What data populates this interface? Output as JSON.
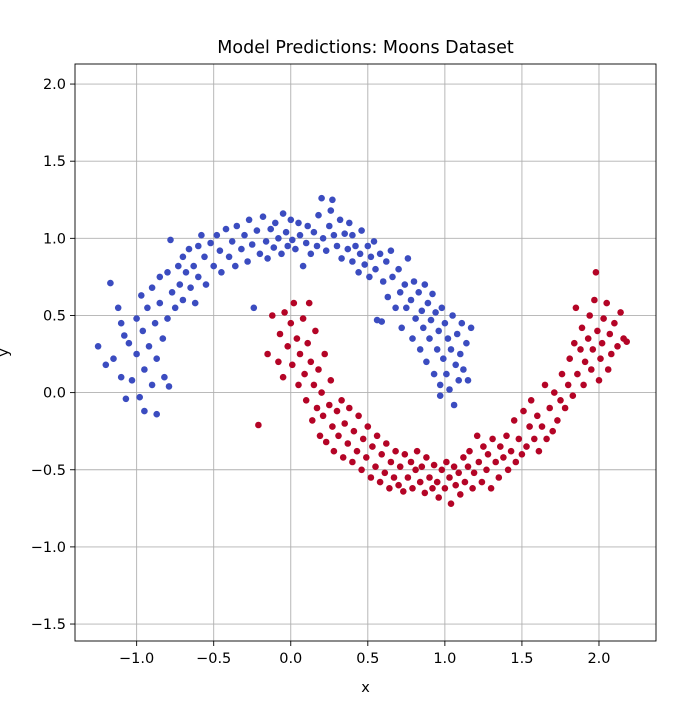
{
  "chart_data": {
    "type": "scatter",
    "title": "Model Predictions: Moons Dataset",
    "xlabel": "x",
    "ylabel": "y",
    "xlim": [
      -1.4,
      2.37
    ],
    "ylim": [
      -1.61,
      2.13
    ],
    "xticks": [
      -1.0,
      -0.5,
      0.0,
      0.5,
      1.0,
      1.5,
      2.0
    ],
    "yticks": [
      -1.5,
      -1.0,
      -0.5,
      0.0,
      0.5,
      1.0,
      1.5,
      2.0
    ],
    "xtick_labels": [
      "−1.0",
      "−0.5",
      "0.0",
      "0.5",
      "1.0",
      "1.5",
      "2.0"
    ],
    "ytick_labels": [
      "−1.5",
      "−1.0",
      "−0.5",
      "0.0",
      "0.5",
      "1.0",
      "1.5",
      "2.0"
    ],
    "grid": true,
    "classes": [
      {
        "label": "0",
        "color": "#3b4cc0"
      },
      {
        "label": "1",
        "color": "#b40426"
      }
    ],
    "points": [
      [
        -1.25,
        0.3,
        0
      ],
      [
        -1.2,
        0.18,
        0
      ],
      [
        -1.15,
        0.22,
        0
      ],
      [
        -1.17,
        0.71,
        0
      ],
      [
        -1.12,
        0.55,
        0
      ],
      [
        -1.1,
        0.45,
        0
      ],
      [
        -1.08,
        0.37,
        0
      ],
      [
        -1.1,
        0.1,
        0
      ],
      [
        -1.07,
        -0.04,
        0
      ],
      [
        -1.05,
        0.32,
        0
      ],
      [
        -1.03,
        0.08,
        0
      ],
      [
        -1.0,
        0.48,
        0
      ],
      [
        -1.0,
        0.25,
        0
      ],
      [
        -0.98,
        -0.03,
        0
      ],
      [
        -0.97,
        0.63,
        0
      ],
      [
        -0.96,
        0.4,
        0
      ],
      [
        -0.95,
        0.15,
        0
      ],
      [
        -0.95,
        -0.12,
        0
      ],
      [
        -0.93,
        0.55,
        0
      ],
      [
        -0.92,
        0.3,
        0
      ],
      [
        -0.9,
        0.05,
        0
      ],
      [
        -0.9,
        0.68,
        0
      ],
      [
        -0.88,
        0.45,
        0
      ],
      [
        -0.87,
        0.22,
        0
      ],
      [
        -0.87,
        -0.14,
        0
      ],
      [
        -0.85,
        0.75,
        0
      ],
      [
        -0.85,
        0.58,
        0
      ],
      [
        -0.83,
        0.35,
        0
      ],
      [
        -0.82,
        0.1,
        0
      ],
      [
        -0.8,
        0.48,
        0
      ],
      [
        -0.8,
        0.78,
        0
      ],
      [
        -0.79,
        0.04,
        0
      ],
      [
        -0.78,
        0.99,
        0
      ],
      [
        -0.77,
        0.65,
        0
      ],
      [
        -0.75,
        0.55,
        0
      ],
      [
        -0.73,
        0.82,
        0
      ],
      [
        -0.72,
        0.7,
        0
      ],
      [
        -0.7,
        0.6,
        0
      ],
      [
        -0.7,
        0.88,
        0
      ],
      [
        -0.68,
        0.78,
        0
      ],
      [
        -0.66,
        0.93,
        0
      ],
      [
        -0.65,
        0.68,
        0
      ],
      [
        -0.63,
        0.82,
        0
      ],
      [
        -0.62,
        0.58,
        0
      ],
      [
        -0.6,
        0.95,
        0
      ],
      [
        -0.6,
        0.75,
        0
      ],
      [
        -0.58,
        1.02,
        0
      ],
      [
        -0.56,
        0.88,
        0
      ],
      [
        -0.55,
        0.7,
        0
      ],
      [
        -0.52,
        0.97,
        0
      ],
      [
        -0.5,
        0.82,
        0
      ],
      [
        -0.48,
        1.02,
        0
      ],
      [
        -0.46,
        0.92,
        0
      ],
      [
        -0.45,
        0.78,
        0
      ],
      [
        -0.42,
        1.06,
        0
      ],
      [
        -0.4,
        0.88,
        0
      ],
      [
        -0.38,
        0.98,
        0
      ],
      [
        -0.36,
        0.82,
        0
      ],
      [
        -0.35,
        1.08,
        0
      ],
      [
        -0.32,
        0.93,
        0
      ],
      [
        -0.3,
        1.02,
        0
      ],
      [
        -0.28,
        0.85,
        0
      ],
      [
        -0.27,
        1.12,
        0
      ],
      [
        -0.25,
        0.96,
        0
      ],
      [
        -0.24,
        0.55,
        0
      ],
      [
        -0.22,
        1.05,
        0
      ],
      [
        -0.2,
        0.9,
        0
      ],
      [
        -0.18,
        1.14,
        0
      ],
      [
        -0.16,
        0.98,
        0
      ],
      [
        -0.15,
        0.87,
        0
      ],
      [
        -0.13,
        1.06,
        0
      ],
      [
        -0.11,
        0.94,
        0
      ],
      [
        -0.1,
        1.1,
        0
      ],
      [
        -0.08,
        1.0,
        0
      ],
      [
        -0.06,
        0.9,
        0
      ],
      [
        -0.05,
        1.16,
        0
      ],
      [
        -0.03,
        1.04,
        0
      ],
      [
        -0.02,
        0.95,
        0
      ],
      [
        0.0,
        1.12,
        0
      ],
      [
        0.01,
        0.99,
        0
      ],
      [
        0.03,
        0.93,
        0
      ],
      [
        0.05,
        1.1,
        0
      ],
      [
        0.06,
        1.02,
        0
      ],
      [
        0.08,
        0.82,
        0
      ],
      [
        0.1,
        0.97,
        0
      ],
      [
        0.11,
        1.08,
        0
      ],
      [
        0.13,
        0.9,
        0
      ],
      [
        0.15,
        1.04,
        0
      ],
      [
        0.17,
        0.95,
        0
      ],
      [
        0.18,
        1.15,
        0
      ],
      [
        0.2,
        1.26,
        0
      ],
      [
        0.21,
        1.0,
        0
      ],
      [
        0.23,
        0.92,
        0
      ],
      [
        0.25,
        1.08,
        0
      ],
      [
        0.26,
        1.18,
        0
      ],
      [
        0.27,
        1.25,
        0
      ],
      [
        0.28,
        1.02,
        0
      ],
      [
        0.3,
        0.95,
        0
      ],
      [
        0.32,
        1.12,
        0
      ],
      [
        0.33,
        0.87,
        0
      ],
      [
        0.35,
        1.03,
        0
      ],
      [
        0.37,
        0.93,
        0
      ],
      [
        0.38,
        1.1,
        0
      ],
      [
        0.4,
        0.85,
        0
      ],
      [
        0.4,
        1.02,
        0
      ],
      [
        0.42,
        0.95,
        0
      ],
      [
        0.44,
        0.78,
        0
      ],
      [
        0.45,
        0.9,
        0
      ],
      [
        0.46,
        1.05,
        0
      ],
      [
        0.48,
        0.83,
        0
      ],
      [
        0.5,
        0.95,
        0
      ],
      [
        0.51,
        0.75,
        0
      ],
      [
        0.52,
        0.88,
        0
      ],
      [
        0.54,
        0.98,
        0
      ],
      [
        0.55,
        0.8,
        0
      ],
      [
        0.56,
        0.47,
        0
      ],
      [
        0.58,
        0.9,
        0
      ],
      [
        0.59,
        0.46,
        0
      ],
      [
        0.6,
        0.72,
        0
      ],
      [
        0.62,
        0.85,
        0
      ],
      [
        0.63,
        0.62,
        0
      ],
      [
        0.65,
        0.92,
        0
      ],
      [
        0.66,
        0.75,
        0
      ],
      [
        0.68,
        0.55,
        0
      ],
      [
        0.7,
        0.8,
        0
      ],
      [
        0.71,
        0.65,
        0
      ],
      [
        0.72,
        0.42,
        0
      ],
      [
        0.74,
        0.7,
        0
      ],
      [
        0.75,
        0.55,
        0
      ],
      [
        0.76,
        0.87,
        0
      ],
      [
        0.78,
        0.6,
        0
      ],
      [
        0.79,
        0.35,
        0
      ],
      [
        0.8,
        0.72,
        0
      ],
      [
        0.81,
        0.48,
        0
      ],
      [
        0.83,
        0.65,
        0
      ],
      [
        0.84,
        0.28,
        0
      ],
      [
        0.85,
        0.53,
        0
      ],
      [
        0.86,
        0.42,
        0
      ],
      [
        0.87,
        0.7,
        0
      ],
      [
        0.88,
        0.2,
        0
      ],
      [
        0.89,
        0.58,
        0
      ],
      [
        0.9,
        0.35,
        0
      ],
      [
        0.91,
        0.47,
        0
      ],
      [
        0.92,
        0.64,
        0
      ],
      [
        0.93,
        0.12,
        0
      ],
      [
        0.94,
        0.52,
        0
      ],
      [
        0.95,
        0.28,
        0
      ],
      [
        0.96,
        0.4,
        0
      ],
      [
        0.97,
        0.05,
        0
      ],
      [
        0.97,
        -0.02,
        0
      ],
      [
        0.98,
        0.55,
        0
      ],
      [
        0.99,
        0.22,
        0
      ],
      [
        1.0,
        0.45,
        0
      ],
      [
        1.01,
        0.12,
        0
      ],
      [
        1.02,
        0.35,
        0
      ],
      [
        1.03,
        0.02,
        0
      ],
      [
        1.04,
        0.28,
        0
      ],
      [
        1.05,
        0.5,
        0
      ],
      [
        1.06,
        -0.08,
        0
      ],
      [
        1.07,
        0.18,
        0
      ],
      [
        1.08,
        0.38,
        0
      ],
      [
        1.09,
        0.08,
        0
      ],
      [
        1.1,
        0.25,
        0
      ],
      [
        1.11,
        0.45,
        0
      ],
      [
        1.12,
        0.15,
        0
      ],
      [
        1.14,
        0.32,
        0
      ],
      [
        1.15,
        0.08,
        0
      ],
      [
        1.17,
        0.42,
        0
      ],
      [
        -0.21,
        -0.21,
        1
      ],
      [
        -0.15,
        0.25,
        1
      ],
      [
        -0.12,
        0.5,
        1
      ],
      [
        -0.08,
        0.2,
        1
      ],
      [
        -0.07,
        0.38,
        1
      ],
      [
        -0.05,
        0.1,
        1
      ],
      [
        -0.04,
        0.52,
        1
      ],
      [
        -0.02,
        0.3,
        1
      ],
      [
        0.0,
        0.45,
        1
      ],
      [
        0.01,
        0.18,
        1
      ],
      [
        0.02,
        0.58,
        1
      ],
      [
        0.04,
        0.35,
        1
      ],
      [
        0.05,
        0.05,
        1
      ],
      [
        0.06,
        0.25,
        1
      ],
      [
        0.08,
        0.48,
        1
      ],
      [
        0.09,
        0.12,
        1
      ],
      [
        0.1,
        -0.05,
        1
      ],
      [
        0.11,
        0.32,
        1
      ],
      [
        0.12,
        0.58,
        1
      ],
      [
        0.13,
        0.2,
        1
      ],
      [
        0.14,
        -0.18,
        1
      ],
      [
        0.15,
        0.05,
        1
      ],
      [
        0.16,
        0.4,
        1
      ],
      [
        0.17,
        -0.1,
        1
      ],
      [
        0.18,
        0.15,
        1
      ],
      [
        0.19,
        -0.28,
        1
      ],
      [
        0.2,
        0.0,
        1
      ],
      [
        0.21,
        -0.15,
        1
      ],
      [
        0.22,
        0.25,
        1
      ],
      [
        0.23,
        -0.32,
        1
      ],
      [
        0.25,
        -0.08,
        1
      ],
      [
        0.26,
        0.08,
        1
      ],
      [
        0.27,
        -0.22,
        1
      ],
      [
        0.28,
        -0.38,
        1
      ],
      [
        0.3,
        -0.12,
        1
      ],
      [
        0.31,
        -0.28,
        1
      ],
      [
        0.33,
        -0.05,
        1
      ],
      [
        0.34,
        -0.42,
        1
      ],
      [
        0.35,
        -0.2,
        1
      ],
      [
        0.37,
        -0.33,
        1
      ],
      [
        0.38,
        -0.1,
        1
      ],
      [
        0.4,
        -0.45,
        1
      ],
      [
        0.41,
        -0.25,
        1
      ],
      [
        0.43,
        -0.38,
        1
      ],
      [
        0.44,
        -0.15,
        1
      ],
      [
        0.46,
        -0.5,
        1
      ],
      [
        0.47,
        -0.3,
        1
      ],
      [
        0.49,
        -0.42,
        1
      ],
      [
        0.5,
        -0.22,
        1
      ],
      [
        0.52,
        -0.55,
        1
      ],
      [
        0.53,
        -0.35,
        1
      ],
      [
        0.55,
        -0.48,
        1
      ],
      [
        0.56,
        -0.28,
        1
      ],
      [
        0.58,
        -0.58,
        1
      ],
      [
        0.59,
        -0.4,
        1
      ],
      [
        0.61,
        -0.52,
        1
      ],
      [
        0.62,
        -0.33,
        1
      ],
      [
        0.64,
        -0.62,
        1
      ],
      [
        0.65,
        -0.45,
        1
      ],
      [
        0.67,
        -0.55,
        1
      ],
      [
        0.68,
        -0.38,
        1
      ],
      [
        0.7,
        -0.6,
        1
      ],
      [
        0.71,
        -0.48,
        1
      ],
      [
        0.73,
        -0.64,
        1
      ],
      [
        0.74,
        -0.4,
        1
      ],
      [
        0.76,
        -0.55,
        1
      ],
      [
        0.78,
        -0.45,
        1
      ],
      [
        0.79,
        -0.62,
        1
      ],
      [
        0.81,
        -0.5,
        1
      ],
      [
        0.82,
        -0.38,
        1
      ],
      [
        0.84,
        -0.58,
        1
      ],
      [
        0.85,
        -0.48,
        1
      ],
      [
        0.87,
        -0.65,
        1
      ],
      [
        0.88,
        -0.42,
        1
      ],
      [
        0.9,
        -0.55,
        1
      ],
      [
        0.92,
        -0.62,
        1
      ],
      [
        0.93,
        -0.47,
        1
      ],
      [
        0.95,
        -0.58,
        1
      ],
      [
        0.96,
        -0.68,
        1
      ],
      [
        0.98,
        -0.5,
        1
      ],
      [
        1.0,
        -0.62,
        1
      ],
      [
        1.01,
        -0.45,
        1
      ],
      [
        1.03,
        -0.55,
        1
      ],
      [
        1.04,
        -0.72,
        1
      ],
      [
        1.06,
        -0.48,
        1
      ],
      [
        1.07,
        -0.6,
        1
      ],
      [
        1.09,
        -0.52,
        1
      ],
      [
        1.1,
        -0.66,
        1
      ],
      [
        1.12,
        -0.42,
        1
      ],
      [
        1.13,
        -0.58,
        1
      ],
      [
        1.15,
        -0.48,
        1
      ],
      [
        1.16,
        -0.38,
        1
      ],
      [
        1.18,
        -0.62,
        1
      ],
      [
        1.19,
        -0.52,
        1
      ],
      [
        1.21,
        -0.28,
        1
      ],
      [
        1.22,
        -0.45,
        1
      ],
      [
        1.24,
        -0.58,
        1
      ],
      [
        1.25,
        -0.35,
        1
      ],
      [
        1.27,
        -0.5,
        1
      ],
      [
        1.28,
        -0.4,
        1
      ],
      [
        1.3,
        -0.62,
        1
      ],
      [
        1.31,
        -0.3,
        1
      ],
      [
        1.33,
        -0.45,
        1
      ],
      [
        1.35,
        -0.55,
        1
      ],
      [
        1.36,
        -0.35,
        1
      ],
      [
        1.38,
        -0.42,
        1
      ],
      [
        1.4,
        -0.28,
        1
      ],
      [
        1.41,
        -0.5,
        1
      ],
      [
        1.43,
        -0.38,
        1
      ],
      [
        1.45,
        -0.18,
        1
      ],
      [
        1.46,
        -0.45,
        1
      ],
      [
        1.48,
        -0.3,
        1
      ],
      [
        1.5,
        -0.4,
        1
      ],
      [
        1.51,
        -0.12,
        1
      ],
      [
        1.53,
        -0.35,
        1
      ],
      [
        1.55,
        -0.22,
        1
      ],
      [
        1.56,
        -0.05,
        1
      ],
      [
        1.58,
        -0.3,
        1
      ],
      [
        1.6,
        -0.15,
        1
      ],
      [
        1.61,
        -0.38,
        1
      ],
      [
        1.63,
        -0.22,
        1
      ],
      [
        1.65,
        0.05,
        1
      ],
      [
        1.66,
        -0.3,
        1
      ],
      [
        1.68,
        -0.1,
        1
      ],
      [
        1.7,
        -0.25,
        1
      ],
      [
        1.71,
        0.0,
        1
      ],
      [
        1.73,
        -0.18,
        1
      ],
      [
        1.75,
        -0.05,
        1
      ],
      [
        1.76,
        0.12,
        1
      ],
      [
        1.78,
        -0.1,
        1
      ],
      [
        1.8,
        0.05,
        1
      ],
      [
        1.81,
        0.22,
        1
      ],
      [
        1.83,
        -0.02,
        1
      ],
      [
        1.84,
        0.32,
        1
      ],
      [
        1.85,
        0.55,
        1
      ],
      [
        1.86,
        0.12,
        1
      ],
      [
        1.88,
        0.28,
        1
      ],
      [
        1.89,
        0.42,
        1
      ],
      [
        1.9,
        0.05,
        1
      ],
      [
        1.91,
        0.2,
        1
      ],
      [
        1.93,
        0.35,
        1
      ],
      [
        1.94,
        0.5,
        1
      ],
      [
        1.95,
        0.15,
        1
      ],
      [
        1.96,
        0.28,
        1
      ],
      [
        1.97,
        0.6,
        1
      ],
      [
        1.98,
        0.78,
        1
      ],
      [
        1.99,
        0.4,
        1
      ],
      [
        2.0,
        0.08,
        1
      ],
      [
        2.01,
        0.22,
        1
      ],
      [
        2.02,
        0.32,
        1
      ],
      [
        2.03,
        0.48,
        1
      ],
      [
        2.05,
        0.58,
        1
      ],
      [
        2.06,
        0.15,
        1
      ],
      [
        2.07,
        0.38,
        1
      ],
      [
        2.08,
        0.25,
        1
      ],
      [
        2.1,
        0.45,
        1
      ],
      [
        2.12,
        0.3,
        1
      ],
      [
        2.14,
        0.52,
        1
      ],
      [
        2.16,
        0.35,
        1
      ],
      [
        2.18,
        0.33,
        1
      ]
    ]
  }
}
